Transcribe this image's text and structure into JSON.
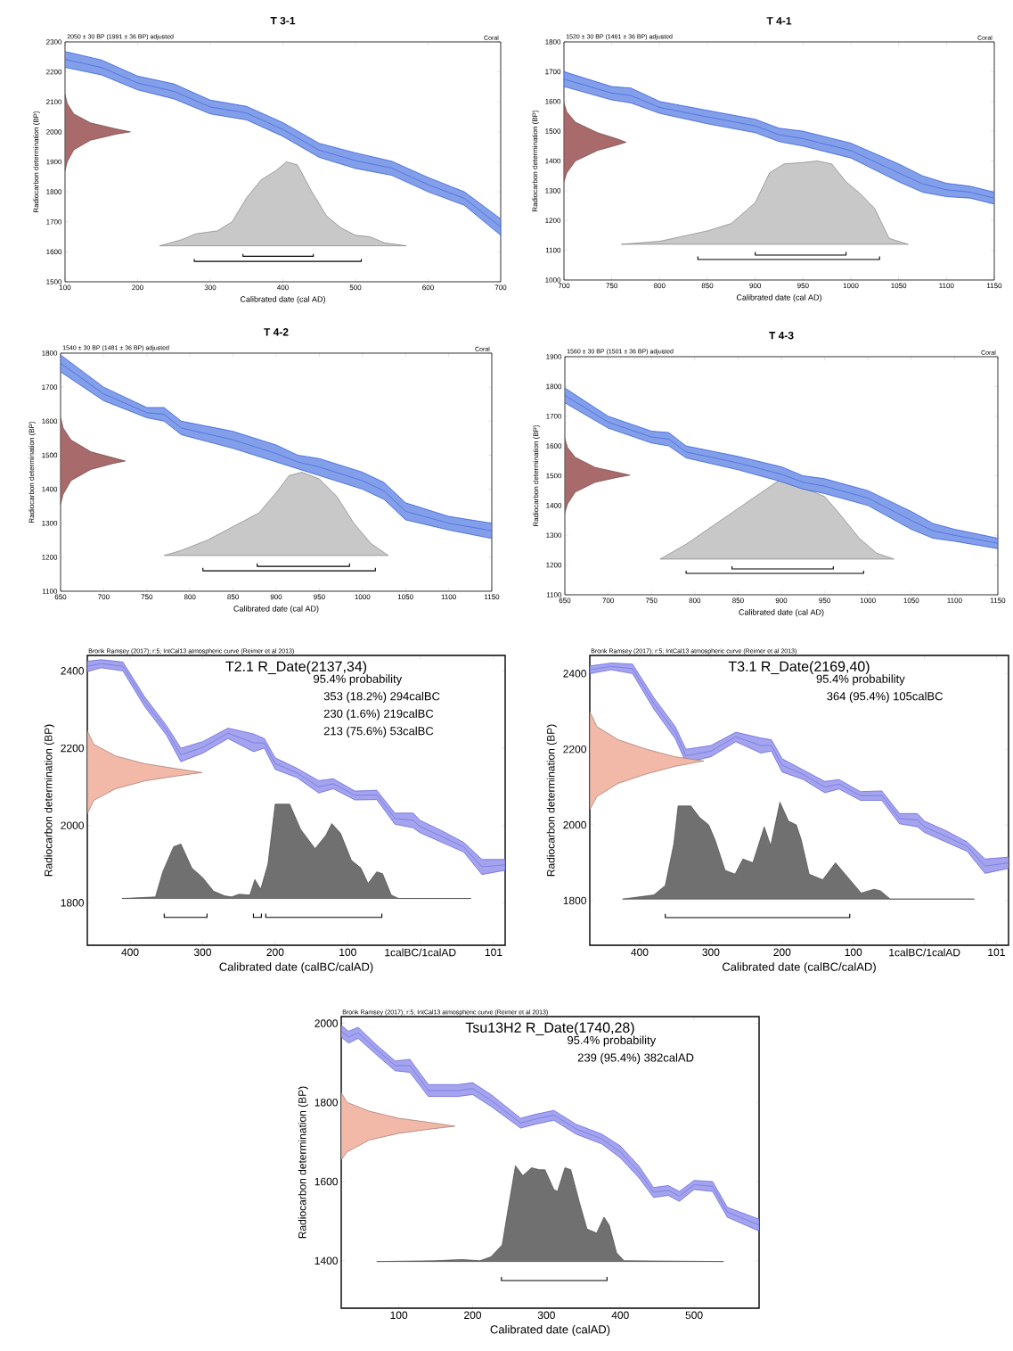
{
  "chart_data": [
    {
      "type": "area",
      "title": "T 3-1",
      "subtitle": "2050 ± 30 BP (1991 ± 36 BP) adjusted",
      "annotations": [
        "Coral"
      ],
      "xlabel": "Calibrated date (cal AD)",
      "ylabel": "Radiocarbon determination (BP)",
      "xlim": [
        100,
        700
      ],
      "ylim": [
        1500,
        2300
      ],
      "xticks": [
        100,
        200,
        300,
        400,
        500,
        600,
        700
      ],
      "yticks": [
        1500,
        1600,
        1700,
        1800,
        1900,
        2000,
        2100,
        2200,
        2300
      ],
      "series": [
        {
          "color": "#c8c8c8",
          "x": [
            230,
            260,
            280,
            310,
            330,
            350,
            370,
            390,
            405,
            420,
            440,
            460,
            480,
            500,
            520,
            540,
            570
          ],
          "values": [
            1620,
            1640,
            1660,
            1670,
            1700,
            1780,
            1840,
            1870,
            1900,
            1890,
            1800,
            1720,
            1680,
            1655,
            1650,
            1630,
            1620
          ]
        },
        {
          "type": "line",
          "color": "#2050d8",
          "x": [
            100,
            150,
            200,
            250,
            300,
            350,
            400,
            450,
            500,
            550,
            600,
            650,
            700
          ],
          "values": [
            2242,
            2215,
            2163,
            2135,
            2083,
            2063,
            2008,
            1939,
            1904,
            1879,
            1824,
            1778,
            1683
          ],
          "upper": [
            2268,
            2240,
            2186,
            2160,
            2106,
            2085,
            2031,
            1962,
            1930,
            1902,
            1848,
            1800,
            1710
          ],
          "lower": [
            2215,
            2190,
            2140,
            2110,
            2060,
            2040,
            1985,
            1915,
            1878,
            1855,
            1800,
            1755,
            1655
          ]
        },
        {
          "color": "#a86a6a",
          "x": [
            100,
            103,
            112,
            135,
            170,
            190,
            170,
            135,
            112,
            103,
            100
          ],
          "values": [
            1870,
            1900,
            1940,
            1972,
            1992,
            2000,
            2010,
            2030,
            2060,
            2095,
            2125
          ]
        },
        {
          "type": "line",
          "color": "#000000",
          "x": [
            345,
            345,
            442,
            442
          ],
          "values": [
            1593,
            1585,
            1585,
            1593
          ]
        },
        {
          "type": "line",
          "color": "#000000",
          "x": [
            278,
            278,
            508,
            508
          ],
          "values": [
            1576,
            1568,
            1568,
            1576
          ]
        }
      ]
    },
    {
      "type": "area",
      "title": "T 4-1",
      "subtitle": "1520 ± 30 BP (1461 ± 36 BP) adjusted",
      "annotations": [
        "Coral"
      ],
      "xlabel": "Calibrated date (cal AD)",
      "ylabel": "Radiocarbon determination (BP)",
      "xlim": [
        700,
        1150
      ],
      "ylim": [
        1000,
        1800
      ],
      "xticks": [
        700,
        750,
        800,
        850,
        900,
        950,
        1000,
        1050,
        1100,
        1150
      ],
      "yticks": [
        1000,
        1100,
        1200,
        1300,
        1400,
        1500,
        1600,
        1700,
        1800
      ],
      "series": [
        {
          "color": "#c8c8c8",
          "x": [
            760,
            800,
            850,
            875,
            900,
            915,
            930,
            950,
            965,
            980,
            995,
            1010,
            1025,
            1040,
            1060
          ],
          "values": [
            1120,
            1130,
            1165,
            1190,
            1260,
            1360,
            1390,
            1395,
            1400,
            1390,
            1330,
            1290,
            1240,
            1140,
            1120
          ]
        },
        {
          "type": "line",
          "color": "#2050d8",
          "x": [
            700,
            750,
            770,
            800,
            850,
            900,
            925,
            950,
            1000,
            1050,
            1075,
            1100,
            1125,
            1150
          ],
          "values": [
            1675,
            1628,
            1620,
            1580,
            1548,
            1518,
            1488,
            1475,
            1435,
            1360,
            1323,
            1303,
            1295,
            1275
          ],
          "upper": [
            1700,
            1650,
            1645,
            1600,
            1570,
            1540,
            1510,
            1500,
            1460,
            1390,
            1350,
            1325,
            1315,
            1295
          ],
          "lower": [
            1650,
            1605,
            1595,
            1560,
            1525,
            1495,
            1465,
            1450,
            1410,
            1330,
            1295,
            1280,
            1275,
            1255
          ]
        },
        {
          "color": "#a86a6a",
          "x": [
            700,
            703,
            712,
            735,
            755,
            765,
            755,
            735,
            712,
            703,
            700
          ],
          "values": [
            1330,
            1360,
            1400,
            1435,
            1453,
            1463,
            1475,
            1495,
            1530,
            1565,
            1595
          ]
        },
        {
          "type": "line",
          "color": "#000000",
          "x": [
            900,
            900,
            995,
            995
          ],
          "values": [
            1094,
            1084,
            1084,
            1094
          ]
        },
        {
          "type": "line",
          "color": "#000000",
          "x": [
            840,
            840,
            1030,
            1030
          ],
          "values": [
            1079,
            1069,
            1069,
            1079
          ]
        }
      ]
    },
    {
      "type": "area",
      "title": "T 4-2",
      "subtitle": "1540 ± 30 BP (1481 ± 36 BP) adjusted",
      "annotations": [
        "Coral"
      ],
      "xlabel": "Calibrated date (cal AD)",
      "ylabel": "Radiocarbon determination (BP)",
      "xlim": [
        650,
        1150
      ],
      "ylim": [
        1100,
        1800
      ],
      "xticks": [
        650,
        700,
        750,
        800,
        850,
        900,
        950,
        1000,
        1050,
        1100,
        1150
      ],
      "yticks": [
        1100,
        1200,
        1300,
        1400,
        1500,
        1600,
        1700,
        1800
      ],
      "series": [
        {
          "color": "#c8c8c8",
          "x": [
            770,
            790,
            820,
            850,
            880,
            900,
            915,
            930,
            950,
            970,
            990,
            1010,
            1030
          ],
          "values": [
            1205,
            1220,
            1250,
            1290,
            1330,
            1390,
            1440,
            1450,
            1430,
            1380,
            1300,
            1240,
            1205
          ]
        },
        {
          "type": "line",
          "color": "#2050d8",
          "x": [
            650,
            700,
            750,
            770,
            790,
            850,
            900,
            925,
            950,
            1000,
            1025,
            1050,
            1100,
            1150
          ],
          "values": [
            1770,
            1680,
            1625,
            1620,
            1580,
            1545,
            1505,
            1480,
            1465,
            1425,
            1395,
            1335,
            1300,
            1278
          ],
          "upper": [
            1795,
            1700,
            1640,
            1640,
            1600,
            1570,
            1530,
            1500,
            1490,
            1450,
            1420,
            1360,
            1320,
            1300
          ],
          "lower": [
            1745,
            1660,
            1610,
            1600,
            1560,
            1520,
            1480,
            1460,
            1440,
            1400,
            1370,
            1310,
            1280,
            1255
          ]
        },
        {
          "color": "#a86a6a",
          "x": [
            650,
            653,
            662,
            685,
            710,
            725,
            710,
            685,
            662,
            653,
            650
          ],
          "values": [
            1355,
            1385,
            1425,
            1458,
            1475,
            1483,
            1493,
            1510,
            1545,
            1580,
            1610
          ]
        },
        {
          "type": "line",
          "color": "#000000",
          "x": [
            878,
            878,
            985,
            985
          ],
          "values": [
            1182,
            1173,
            1173,
            1182
          ]
        },
        {
          "type": "line",
          "color": "#000000",
          "x": [
            815,
            815,
            1015,
            1015
          ],
          "values": [
            1169,
            1160,
            1160,
            1169
          ]
        }
      ]
    },
    {
      "type": "area",
      "title": "T 4-3",
      "subtitle": "1560 ± 30 BP (1501 ± 36 BP) adjusted",
      "annotations": [
        "Coral"
      ],
      "xlabel": "Calibrated date (cal AD)",
      "ylabel": "Radiocarbon determination (BP)",
      "xlim": [
        650,
        1150
      ],
      "ylim": [
        1100,
        1900
      ],
      "xticks": [
        650,
        700,
        750,
        800,
        850,
        900,
        950,
        1000,
        1050,
        1100,
        1150
      ],
      "yticks": [
        1100,
        1200,
        1300,
        1400,
        1500,
        1600,
        1700,
        1800,
        1900
      ],
      "series": [
        {
          "color": "#c8c8c8",
          "x": [
            760,
            790,
            820,
            850,
            875,
            900,
            925,
            950,
            965,
            990,
            1010,
            1030
          ],
          "values": [
            1220,
            1270,
            1330,
            1390,
            1440,
            1490,
            1460,
            1430,
            1380,
            1290,
            1240,
            1220
          ]
        },
        {
          "type": "line",
          "color": "#2050d8",
          "x": [
            650,
            700,
            750,
            770,
            790,
            850,
            900,
            925,
            950,
            1000,
            1050,
            1075,
            1100,
            1150
          ],
          "values": [
            1770,
            1680,
            1630,
            1623,
            1580,
            1543,
            1505,
            1478,
            1465,
            1425,
            1350,
            1315,
            1300,
            1273
          ],
          "upper": [
            1795,
            1700,
            1650,
            1645,
            1600,
            1565,
            1530,
            1500,
            1490,
            1450,
            1380,
            1340,
            1320,
            1290
          ],
          "lower": [
            1745,
            1660,
            1610,
            1600,
            1560,
            1520,
            1480,
            1455,
            1440,
            1400,
            1320,
            1290,
            1280,
            1255
          ]
        },
        {
          "color": "#a86a6a",
          "x": [
            650,
            653,
            662,
            685,
            710,
            725,
            710,
            685,
            662,
            653,
            650
          ],
          "values": [
            1375,
            1405,
            1445,
            1478,
            1494,
            1502,
            1512,
            1528,
            1562,
            1595,
            1625
          ]
        },
        {
          "type": "line",
          "color": "#000000",
          "x": [
            843,
            843,
            960,
            960
          ],
          "values": [
            1196,
            1187,
            1187,
            1196
          ]
        },
        {
          "type": "line",
          "color": "#000000",
          "x": [
            790,
            790,
            995,
            995
          ],
          "values": [
            1181,
            1172,
            1172,
            1181
          ]
        }
      ]
    },
    {
      "type": "area",
      "title": "T2.1 R_Date(2137,34)",
      "annotations": [
        "Bronk Ramsey (2017); r:5; IntCal13 atmospheric curve (Reimer et al 2013)",
        "95.4% probability",
        "353 (18.2%) 294calBC",
        "230 (1.6%) 219calBC",
        "213 (75.6%) 53calBC"
      ],
      "xlabel": "Calibrated date (calBC/calAD)",
      "ylabel": "Radiocarbon determination (BP)",
      "xlim": [
        -459,
        117
      ],
      "ylim": [
        1690,
        2440
      ],
      "xticks": [
        {
          "value": -400,
          "label": "400"
        },
        {
          "value": -300,
          "label": "300"
        },
        {
          "value": -200,
          "label": "200"
        },
        {
          "value": -100,
          "label": "100"
        },
        {
          "value": 0,
          "label": "1calBC/1calAD"
        },
        {
          "value": 101,
          "label": "101"
        }
      ],
      "yticks": [
        1800,
        2000,
        2200,
        2400
      ],
      "series": [
        {
          "color": "#707070",
          "x": [
            -411,
            -365,
            -355,
            -340,
            -330,
            -315,
            -300,
            -285,
            -270,
            -260,
            -250,
            -235,
            -228,
            -220,
            -210,
            -200,
            -180,
            -165,
            -145,
            -130,
            -122,
            -110,
            -95,
            -82,
            -72,
            -60,
            -52,
            -40,
            -30,
            70
          ],
          "values": [
            1811,
            1815,
            1880,
            1945,
            1952,
            1890,
            1865,
            1830,
            1818,
            1815,
            1822,
            1820,
            1860,
            1835,
            1900,
            2055,
            2055,
            1990,
            1940,
            1975,
            2005,
            1980,
            1910,
            1890,
            1850,
            1880,
            1875,
            1820,
            1811,
            1811
          ]
        },
        {
          "type": "line",
          "color": "#5a5ae0",
          "x": [
            -459,
            -440,
            -410,
            -380,
            -350,
            -330,
            -300,
            -265,
            -230,
            -215,
            -200,
            -170,
            -140,
            -120,
            -90,
            -60,
            -35,
            -10,
            0,
            30,
            60,
            85,
            117
          ],
          "values": [
            2412,
            2419,
            2412,
            2321,
            2247,
            2183,
            2202,
            2239,
            2214,
            2213,
            2160,
            2136,
            2100,
            2108,
            2078,
            2079,
            2018,
            2013,
            1997,
            1971,
            1944,
            1893,
            1898
          ],
          "upper": [
            2425,
            2429,
            2423,
            2333,
            2259,
            2200,
            2217,
            2252,
            2237,
            2225,
            2175,
            2148,
            2116,
            2121,
            2089,
            2091,
            2032,
            2032,
            2013,
            1986,
            1956,
            1912,
            1912
          ],
          "lower": [
            2398,
            2408,
            2400,
            2308,
            2234,
            2165,
            2187,
            2225,
            2191,
            2200,
            2145,
            2124,
            2084,
            2095,
            2066,
            2067,
            2003,
            1994,
            1981,
            1956,
            1931,
            1873,
            1884
          ]
        },
        {
          "color": "#f2b8a8",
          "x": [
            -459,
            -450,
            -420,
            -380,
            -340,
            -301,
            -340,
            -380,
            -420,
            -450,
            -459
          ],
          "values": [
            2030,
            2065,
            2095,
            2115,
            2127,
            2137,
            2148,
            2160,
            2180,
            2210,
            2245
          ]
        },
        {
          "type": "line",
          "color": "#000000",
          "x": [
            -353,
            -353,
            -294,
            -294
          ],
          "values": [
            1772,
            1762,
            1762,
            1772
          ]
        },
        {
          "type": "line",
          "color": "#000000",
          "x": [
            -230,
            -230,
            -219,
            -219
          ],
          "values": [
            1772,
            1762,
            1762,
            1772
          ]
        },
        {
          "type": "line",
          "color": "#000000",
          "x": [
            -213,
            -213,
            -53,
            -53
          ],
          "values": [
            1772,
            1762,
            1762,
            1772
          ]
        }
      ]
    },
    {
      "type": "area",
      "title": "T3.1 R_Date(2169,40)",
      "annotations": [
        "Bronk Ramsey (2017); r:5; IntCal13 atmospheric curve (Reimer et al 2013)",
        "95.4% probability",
        "364 (95.4%) 105calBC"
      ],
      "xlabel": "Calibrated date (calBC/calAD)",
      "ylabel": "Radiocarbon determination (BP)",
      "xlim": [
        -470,
        118
      ],
      "ylim": [
        1682,
        2448
      ],
      "xticks": [
        {
          "value": -400,
          "label": "400"
        },
        {
          "value": -300,
          "label": "300"
        },
        {
          "value": -200,
          "label": "200"
        },
        {
          "value": -100,
          "label": "100"
        },
        {
          "value": 0,
          "label": "1calBC/1calAD"
        },
        {
          "value": 101,
          "label": "101"
        }
      ],
      "yticks": [
        1800,
        2000,
        2200,
        2400
      ],
      "series": [
        {
          "color": "#707070",
          "x": [
            -424,
            -380,
            -364,
            -352,
            -346,
            -328,
            -316,
            -303,
            -294,
            -280,
            -266,
            -255,
            -241,
            -225,
            -216,
            -203,
            -191,
            -180,
            -173,
            -162,
            -143,
            -125,
            -116,
            -98,
            -89,
            -71,
            -62,
            -48,
            70
          ],
          "values": [
            1804,
            1815,
            1840,
            1950,
            2050,
            2050,
            2020,
            2000,
            1960,
            1880,
            1870,
            1910,
            1900,
            1995,
            1945,
            2060,
            2010,
            2000,
            1960,
            1870,
            1855,
            1900,
            1880,
            1840,
            1820,
            1830,
            1826,
            1804,
            1804
          ]
        },
        {
          "type": "line",
          "color": "#5a5ae0",
          "x": [
            -470,
            -440,
            -410,
            -380,
            -350,
            -335,
            -300,
            -265,
            -230,
            -215,
            -200,
            -170,
            -140,
            -120,
            -90,
            -60,
            -35,
            -10,
            0,
            30,
            60,
            85,
            118
          ],
          "values": [
            2410,
            2419,
            2413,
            2321,
            2244,
            2183,
            2195,
            2233,
            2210,
            2210,
            2158,
            2133,
            2100,
            2108,
            2077,
            2078,
            2017,
            2013,
            1995,
            1970,
            1943,
            1891,
            1900
          ],
          "upper": [
            2420,
            2428,
            2425,
            2336,
            2260,
            2200,
            2210,
            2245,
            2230,
            2225,
            2175,
            2145,
            2115,
            2120,
            2088,
            2090,
            2030,
            2030,
            2010,
            1985,
            1955,
            1910,
            1915
          ],
          "lower": [
            2400,
            2410,
            2400,
            2306,
            2228,
            2165,
            2180,
            2220,
            2190,
            2195,
            2140,
            2120,
            2085,
            2095,
            2065,
            2065,
            2003,
            1995,
            1980,
            1955,
            1930,
            1872,
            1885
          ]
        },
        {
          "color": "#f2b8a8",
          "x": [
            -470,
            -460,
            -430,
            -390,
            -350,
            -310,
            -350,
            -390,
            -430,
            -460,
            -470
          ],
          "values": [
            2040,
            2075,
            2110,
            2135,
            2155,
            2169,
            2180,
            2200,
            2225,
            2260,
            2300
          ]
        },
        {
          "type": "line",
          "color": "#000000",
          "x": [
            -364,
            -364,
            -105,
            -105
          ],
          "values": [
            1765,
            1755,
            1755,
            1765
          ]
        }
      ]
    },
    {
      "type": "area",
      "title": "Tsu13H2 R_Date(1740,28)",
      "annotations": [
        "Bronk Ramsey (2017); r:5; IntCal13 atmospheric curve (Reimer et al 2013)",
        "95.4% probability",
        "239 (95.4%) 382calAD"
      ],
      "xlabel": "Calibrated date (calAD)",
      "ylabel": "Radiocarbon determination (BP)",
      "xlim": [
        22,
        588
      ],
      "ylim": [
        1280,
        2017
      ],
      "xticks": [
        100,
        200,
        300,
        400,
        500
      ],
      "yticks": [
        1400,
        1600,
        1800,
        2000
      ],
      "series": [
        {
          "color": "#707070",
          "x": [
            70,
            150,
            185,
            210,
            225,
            240,
            248,
            258,
            268,
            280,
            290,
            298,
            310,
            315,
            325,
            333,
            345,
            355,
            368,
            378,
            385,
            395,
            405,
            540
          ],
          "values": [
            1398,
            1400,
            1403,
            1400,
            1410,
            1440,
            1530,
            1640,
            1615,
            1635,
            1630,
            1630,
            1580,
            1575,
            1635,
            1630,
            1545,
            1480,
            1470,
            1510,
            1490,
            1420,
            1400,
            1398
          ]
        },
        {
          "type": "line",
          "color": "#5a5ae0",
          "x": [
            22,
            32,
            45,
            70,
            95,
            115,
            140,
            180,
            200,
            225,
            265,
            285,
            310,
            340,
            375,
            400,
            425,
            445,
            465,
            480,
            500,
            525,
            545,
            588
          ],
          "values": [
            1980,
            1965,
            1976,
            1933,
            1893,
            1893,
            1830,
            1830,
            1835,
            1805,
            1748,
            1758,
            1768,
            1733,
            1708,
            1675,
            1625,
            1573,
            1578,
            1563,
            1592,
            1588,
            1523,
            1490
          ],
          "upper": [
            1995,
            1980,
            1990,
            1945,
            1905,
            1909,
            1845,
            1845,
            1850,
            1820,
            1760,
            1770,
            1780,
            1745,
            1720,
            1690,
            1640,
            1585,
            1590,
            1575,
            1603,
            1600,
            1535,
            1505
          ],
          "lower": [
            1965,
            1950,
            1962,
            1920,
            1880,
            1876,
            1815,
            1815,
            1820,
            1790,
            1735,
            1745,
            1755,
            1720,
            1695,
            1660,
            1610,
            1560,
            1565,
            1550,
            1580,
            1575,
            1510,
            1475
          ]
        },
        {
          "color": "#f2b8a8",
          "x": [
            22,
            30,
            60,
            100,
            140,
            176,
            140,
            100,
            60,
            30,
            22
          ],
          "values": [
            1655,
            1675,
            1705,
            1722,
            1732,
            1740,
            1750,
            1760,
            1778,
            1800,
            1825
          ]
        },
        {
          "type": "line",
          "color": "#000000",
          "x": [
            239,
            239,
            382,
            382
          ],
          "values": [
            1359,
            1350,
            1350,
            1359
          ]
        }
      ]
    }
  ]
}
